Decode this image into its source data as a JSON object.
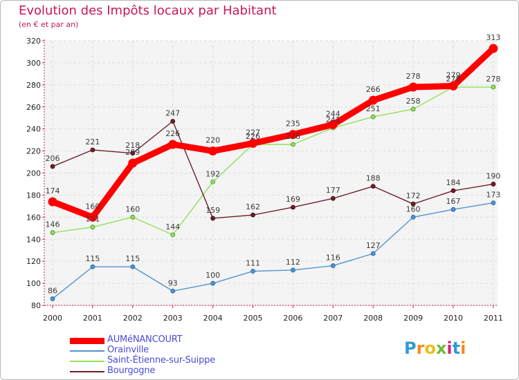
{
  "chart_data": {
    "type": "line",
    "title": "Evolution des Impôts locaux par Habitant",
    "subtitle": "(en € et par an)",
    "xlabel": "",
    "ylabel": "",
    "ylim": [
      80,
      320
    ],
    "yticks": [
      "80",
      "100",
      "120",
      "140",
      "160",
      "180",
      "200",
      "220",
      "240",
      "260",
      "280",
      "300",
      "320"
    ],
    "categories": [
      "2000",
      "2001",
      "2002",
      "2003",
      "2004",
      "2005",
      "2006",
      "2007",
      "2008",
      "2009",
      "2010",
      "2011"
    ],
    "grid": true,
    "legend_position": "bottom-left",
    "series": [
      {
        "name": "AUMéNANCOURT",
        "color": "#ff0000",
        "values": [
          174,
          160,
          209,
          226,
          220,
          227,
          235,
          244,
          266,
          278,
          279,
          313
        ]
      },
      {
        "name": "Orainville",
        "color": "#4f93d0",
        "values": [
          86,
          115,
          115,
          93,
          100,
          111,
          112,
          116,
          127,
          160,
          167,
          173
        ]
      },
      {
        "name": "Saint-Étienne-sur-Suippe",
        "color": "#90e05a",
        "values": [
          146,
          151,
          160,
          144,
          192,
          226,
          226,
          241,
          251,
          258,
          278,
          278
        ]
      },
      {
        "name": "Bourgogne",
        "color": "#6e1e2a",
        "values": [
          206,
          221,
          218,
          247,
          159,
          162,
          169,
          177,
          188,
          172,
          184,
          190
        ]
      }
    ]
  },
  "logo": {
    "text": "Proxiti",
    "colors": [
      "#2e9ad6",
      "#f28a1c",
      "#e6c21a",
      "#6dbb3a",
      "#cc2a7a",
      "#2e9ad6",
      "#f28a1c"
    ]
  }
}
